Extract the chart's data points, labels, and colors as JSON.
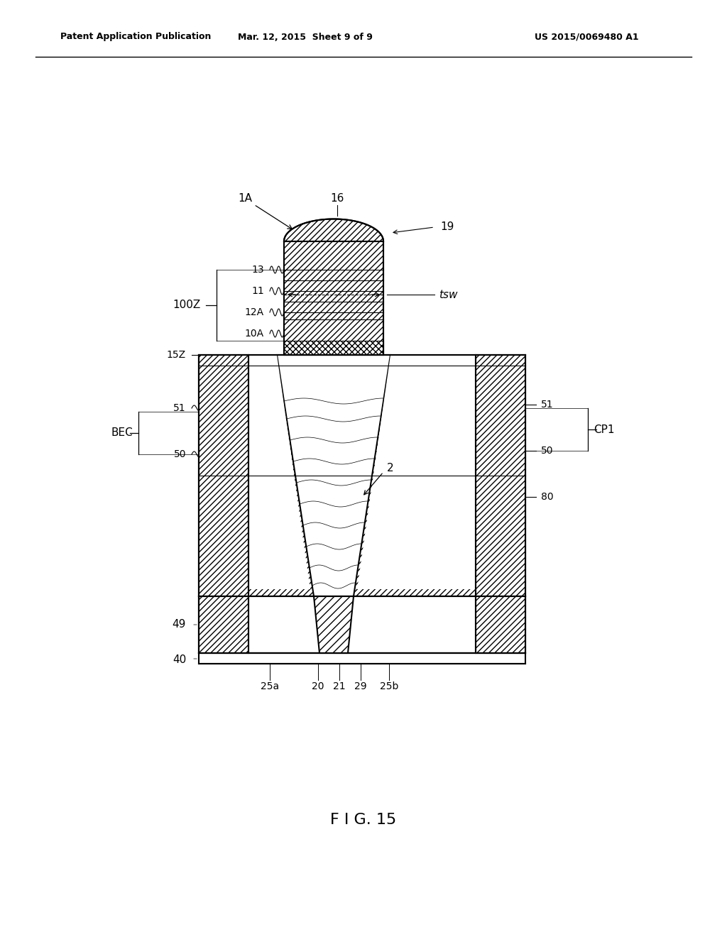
{
  "bg_color": "#ffffff",
  "line_color": "#000000",
  "header_left": "Patent Application Publication",
  "header_center": "Mar. 12, 2015  Sheet 9 of 9",
  "header_right": "US 2015/0069480 A1",
  "figure_label": "F I G. 15"
}
